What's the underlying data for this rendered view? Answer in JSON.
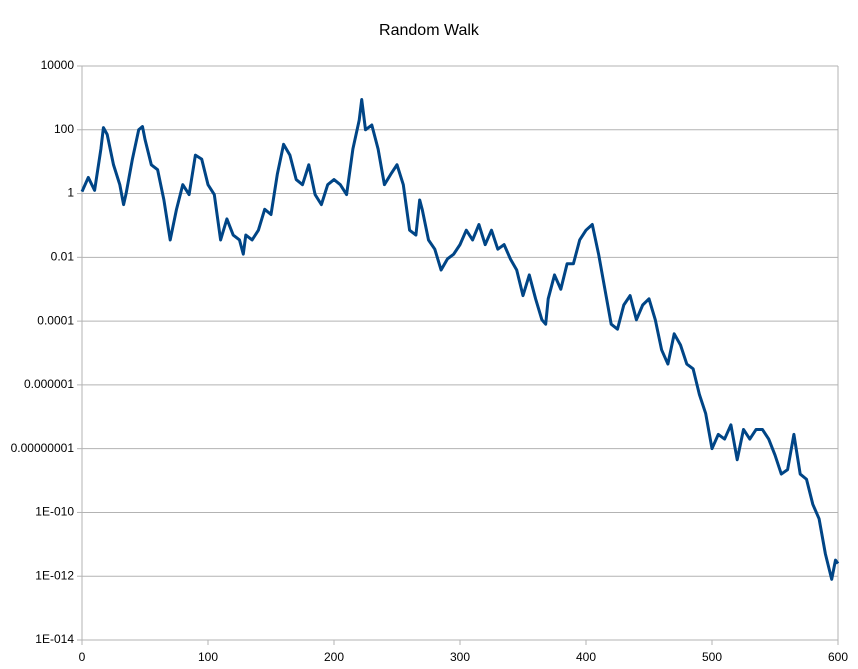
{
  "chart_data": {
    "type": "line",
    "title": "Random Walk",
    "x": [
      0,
      5,
      10,
      15,
      17,
      20,
      25,
      30,
      33,
      35,
      40,
      45,
      48,
      50,
      55,
      60,
      65,
      70,
      75,
      80,
      85,
      90,
      95,
      100,
      105,
      110,
      115,
      120,
      125,
      128,
      130,
      135,
      140,
      145,
      150,
      155,
      160,
      165,
      170,
      175,
      180,
      185,
      190,
      195,
      200,
      205,
      210,
      215,
      220,
      222,
      225,
      230,
      235,
      240,
      245,
      250,
      255,
      260,
      265,
      268,
      270,
      275,
      280,
      285,
      290,
      295,
      300,
      305,
      310,
      315,
      320,
      325,
      330,
      335,
      340,
      345,
      350,
      355,
      360,
      365,
      368,
      370,
      375,
      380,
      385,
      390,
      395,
      400,
      405,
      410,
      415,
      420,
      425,
      430,
      435,
      440,
      445,
      450,
      455,
      460,
      465,
      470,
      475,
      480,
      485,
      490,
      495,
      500,
      505,
      510,
      515,
      520,
      525,
      530,
      535,
      540,
      545,
      550,
      555,
      560,
      565,
      570,
      575,
      580,
      585,
      590,
      595,
      598,
      600
    ],
    "series": [
      {
        "color": "#004586",
        "values": [
          1.15,
          3.2,
          1.26,
          25,
          117,
          71,
          8,
          1.9,
          0.45,
          1,
          12,
          100,
          126,
          50,
          8,
          5.6,
          0.63,
          0.035,
          0.32,
          1.9,
          0.93,
          16,
          12,
          1.9,
          0.93,
          0.035,
          0.16,
          0.05,
          0.035,
          0.0126,
          0.05,
          0.035,
          0.071,
          0.32,
          0.22,
          4,
          35,
          16,
          2.75,
          1.9,
          8,
          0.93,
          0.45,
          1.9,
          2.75,
          1.9,
          0.93,
          25,
          200,
          890,
          100,
          141,
          25,
          1.9,
          4,
          8,
          1.9,
          0.071,
          0.05,
          0.63,
          0.32,
          0.035,
          0.018,
          0.004,
          0.0089,
          0.0126,
          0.025,
          0.071,
          0.035,
          0.107,
          0.025,
          0.071,
          0.018,
          0.025,
          0.0089,
          0.004,
          0.00063,
          0.0028,
          0.0005,
          0.00011,
          8e-05,
          0.0005,
          0.0028,
          0.001,
          0.0063,
          0.0063,
          0.035,
          0.071,
          0.107,
          0.0126,
          0.001,
          8e-05,
          5.6e-05,
          0.00032,
          0.00063,
          0.00011,
          0.00032,
          0.0005,
          0.00011,
          1.26e-05,
          4.5e-06,
          4e-05,
          1.78e-05,
          4.5e-06,
          3.2e-06,
          5e-07,
          1.26e-07,
          1e-08,
          2.8e-08,
          2e-08,
          5.6e-08,
          4.5e-09,
          4e-08,
          2e-08,
          4e-08,
          4e-08,
          2e-08,
          6.3e-09,
          1.6e-09,
          2.2e-09,
          2.8e-08,
          1.6e-09,
          1.1e-09,
          1.8e-10,
          6.3e-11,
          5e-12,
          8e-13,
          3.2e-12,
          2.5e-12
        ]
      }
    ],
    "xlim": [
      0,
      600
    ],
    "xticks": [
      0,
      100,
      200,
      300,
      400,
      500,
      600
    ],
    "ylim": [
      1e-14,
      10000
    ],
    "log_y": true,
    "grid": true,
    "yticks": [
      10000,
      100,
      1,
      0.01,
      0.0001,
      {
        "value": 1e-06,
        "label": "0.000001"
      },
      {
        "value": 1e-08,
        "label": "0.00000001"
      },
      {
        "value": 1e-10,
        "label": "1E-010"
      },
      {
        "value": 1e-12,
        "label": "1E-012"
      },
      {
        "value": 1e-14,
        "label": "1E-014"
      }
    ]
  }
}
